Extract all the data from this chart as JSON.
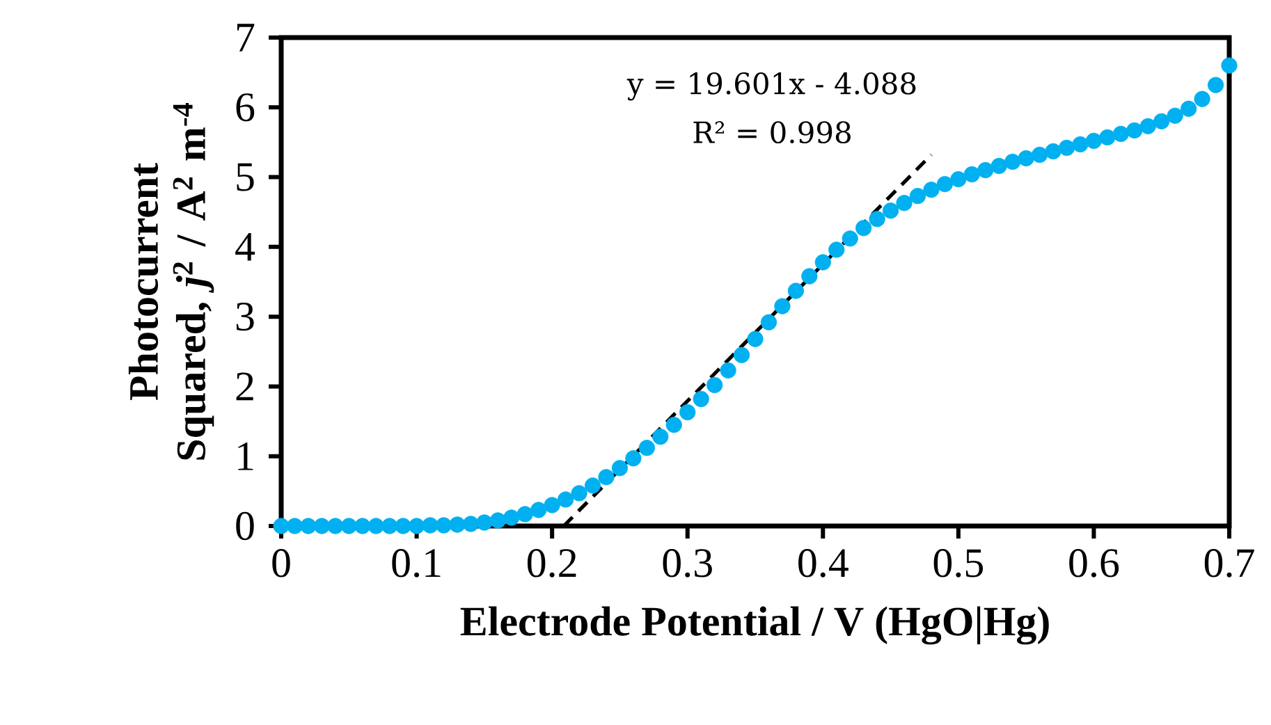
{
  "chart_data": {
    "type": "scatter",
    "xlabel": "Electrode Potential  /  V (HgO|Hg)",
    "ylabel": "Photocurrent Squared, *j*$^{2}$ / A$^{2}$ m$^{-4}$",
    "x": [
      0.0,
      0.01,
      0.02,
      0.03,
      0.04,
      0.05,
      0.06,
      0.07,
      0.08,
      0.09,
      0.1,
      0.11,
      0.12,
      0.13,
      0.14,
      0.15,
      0.16,
      0.17,
      0.18,
      0.19,
      0.2,
      0.21,
      0.22,
      0.23,
      0.24,
      0.25,
      0.26,
      0.27,
      0.28,
      0.29,
      0.3,
      0.31,
      0.32,
      0.33,
      0.34,
      0.35,
      0.36,
      0.37,
      0.38,
      0.39,
      0.4,
      0.41,
      0.42,
      0.43,
      0.44,
      0.45,
      0.46,
      0.47,
      0.48,
      0.49,
      0.5,
      0.51,
      0.52,
      0.53,
      0.54,
      0.55,
      0.56,
      0.57,
      0.58,
      0.59,
      0.6,
      0.61,
      0.62,
      0.63,
      0.64,
      0.65,
      0.66,
      0.67,
      0.68,
      0.69,
      0.7
    ],
    "series": [
      {
        "color": "#00b0f0",
        "marker": "circle",
        "values": [
          0,
          0,
          0,
          0,
          0,
          0,
          0,
          0,
          0,
          0,
          0,
          0.01,
          0.01,
          0.02,
          0.03,
          0.05,
          0.08,
          0.12,
          0.17,
          0.23,
          0.3,
          0.38,
          0.47,
          0.58,
          0.7,
          0.83,
          0.97,
          1.12,
          1.28,
          1.45,
          1.63,
          1.82,
          2.02,
          2.23,
          2.45,
          2.68,
          2.92,
          3.15,
          3.37,
          3.58,
          3.78,
          3.96,
          4.12,
          4.27,
          4.4,
          4.52,
          4.63,
          4.73,
          4.82,
          4.9,
          4.97,
          5.04,
          5.1,
          5.16,
          5.22,
          5.27,
          5.32,
          5.37,
          5.42,
          5.47,
          5.52,
          5.57,
          5.62,
          5.67,
          5.73,
          5.8,
          5.88,
          5.98,
          6.12,
          6.32,
          6.6
        ]
      },
      {
        "type": "line",
        "color": "#000000",
        "line_style": "dashed",
        "x": [
          0.2086,
          0.48
        ],
        "values": [
          0,
          5.32
        ]
      }
    ],
    "xlim": [
      0,
      0.7
    ],
    "xticks": [
      0,
      0.1,
      0.2,
      0.3,
      0.4,
      0.5,
      0.6,
      0.7
    ],
    "ylim": [
      0,
      7
    ],
    "yticks": [
      0,
      1,
      2,
      3,
      4,
      5,
      6,
      7
    ],
    "annotations": [
      "y = 19.601x - 4.088",
      "R² = 0.998"
    ]
  }
}
